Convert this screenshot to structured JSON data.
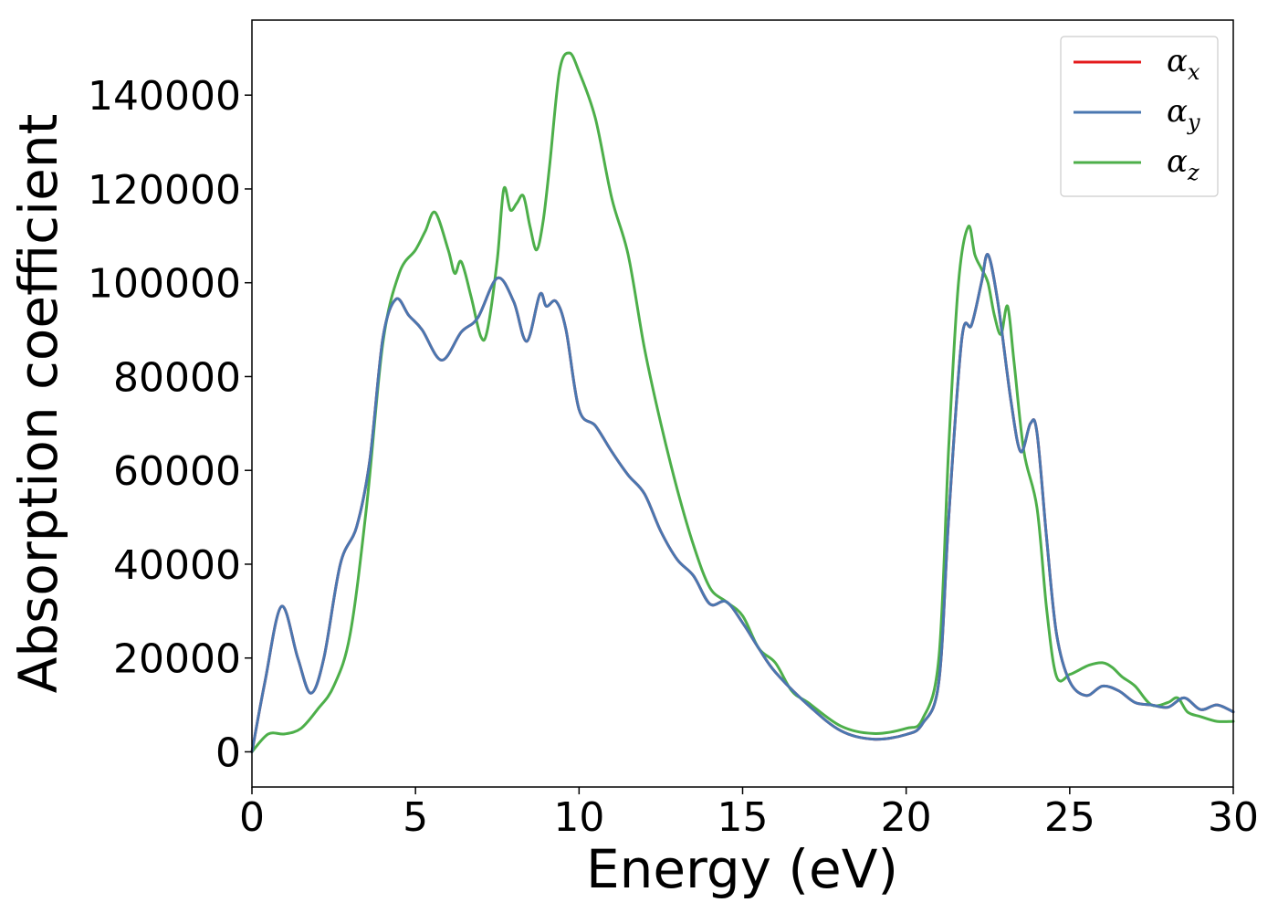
{
  "chart_data": {
    "type": "line",
    "title": "",
    "xlabel": "Energy (eV)",
    "ylabel": "Absorption coefficient",
    "xlim": [
      0,
      30
    ],
    "ylim": [
      -7500,
      156000
    ],
    "xticks": [
      0,
      5,
      10,
      15,
      20,
      25,
      30
    ],
    "yticks": [
      0,
      20000,
      40000,
      60000,
      80000,
      100000,
      120000,
      140000
    ],
    "grid": false,
    "legend_position": "top-right",
    "series": [
      {
        "name": "αx",
        "symbol": "α",
        "sub": "x",
        "color": "#e41a1c",
        "x": [
          0,
          0.4,
          0.9,
          1.4,
          1.8,
          2.2,
          2.7,
          3.2,
          3.6,
          4.0,
          4.4,
          4.8,
          5.2,
          5.8,
          6.4,
          6.9,
          7.5,
          8.0,
          8.4,
          8.8,
          9.0,
          9.3,
          9.6,
          10.0,
          10.5,
          11.0,
          11.5,
          12.0,
          12.5,
          13.0,
          13.5,
          14.0,
          14.5,
          15.0,
          15.5,
          16.0,
          17.0,
          18.0,
          19.0,
          20.0,
          20.5,
          21.0,
          21.3,
          21.7,
          22.0,
          22.3,
          22.5,
          22.8,
          23.2,
          23.5,
          23.8,
          24.0,
          24.3,
          24.6,
          25.0,
          25.5,
          26.0,
          26.5,
          27.0,
          27.5,
          28.0,
          28.5,
          29.0,
          29.5,
          30.0
        ],
        "y": [
          0,
          15000,
          31000,
          20000,
          12500,
          20000,
          40000,
          48000,
          62000,
          88000,
          96500,
          93000,
          90000,
          83500,
          89500,
          92500,
          101000,
          96000,
          87500,
          97500,
          95000,
          96000,
          90000,
          73000,
          69500,
          64000,
          59000,
          55000,
          47000,
          41000,
          37500,
          31500,
          32000,
          27500,
          22000,
          17000,
          10000,
          4500,
          2700,
          3700,
          6000,
          15000,
          50000,
          88000,
          91000,
          100000,
          106000,
          96000,
          75000,
          64000,
          70000,
          68000,
          45000,
          25000,
          15000,
          12000,
          14000,
          13000,
          10500,
          10000,
          9500,
          11500,
          9000,
          10000,
          8500
        ]
      },
      {
        "name": "αy",
        "symbol": "α",
        "sub": "y",
        "color": "#4a77b0",
        "x": [
          0,
          0.4,
          0.9,
          1.4,
          1.8,
          2.2,
          2.7,
          3.2,
          3.6,
          4.0,
          4.4,
          4.8,
          5.2,
          5.8,
          6.4,
          6.9,
          7.5,
          8.0,
          8.4,
          8.8,
          9.0,
          9.3,
          9.6,
          10.0,
          10.5,
          11.0,
          11.5,
          12.0,
          12.5,
          13.0,
          13.5,
          14.0,
          14.5,
          15.0,
          15.5,
          16.0,
          17.0,
          18.0,
          19.0,
          20.0,
          20.5,
          21.0,
          21.3,
          21.7,
          22.0,
          22.3,
          22.5,
          22.8,
          23.2,
          23.5,
          23.8,
          24.0,
          24.3,
          24.6,
          25.0,
          25.5,
          26.0,
          26.5,
          27.0,
          27.5,
          28.0,
          28.5,
          29.0,
          29.5,
          30.0
        ],
        "y": [
          0,
          15000,
          31000,
          20000,
          12500,
          20000,
          40000,
          48000,
          62000,
          88000,
          96500,
          93000,
          90000,
          83500,
          89500,
          92500,
          101000,
          96000,
          87500,
          97500,
          95000,
          96000,
          90000,
          73000,
          69500,
          64000,
          59000,
          55000,
          47000,
          41000,
          37500,
          31500,
          32000,
          27500,
          22000,
          17000,
          10000,
          4500,
          2700,
          3700,
          6000,
          15000,
          50000,
          88000,
          91000,
          100000,
          106000,
          96000,
          75000,
          64000,
          70000,
          68000,
          45000,
          25000,
          15000,
          12000,
          14000,
          13000,
          10500,
          10000,
          9500,
          11500,
          9000,
          10000,
          8500
        ]
      },
      {
        "name": "αz",
        "symbol": "α",
        "sub": "z",
        "color": "#4daf4a",
        "x": [
          0,
          0.5,
          1.0,
          1.5,
          2.0,
          2.5,
          3.0,
          3.5,
          4.0,
          4.5,
          5.0,
          5.3,
          5.6,
          6.0,
          6.2,
          6.4,
          6.7,
          7.0,
          7.2,
          7.5,
          7.7,
          7.9,
          8.1,
          8.3,
          8.5,
          8.7,
          8.9,
          9.1,
          9.4,
          9.7,
          10.0,
          10.5,
          11.0,
          11.5,
          12.0,
          12.5,
          13.0,
          13.5,
          14.0,
          14.5,
          15.0,
          15.5,
          16.0,
          16.5,
          17.0,
          18.0,
          19.0,
          20.0,
          20.5,
          21.0,
          21.3,
          21.6,
          21.9,
          22.1,
          22.3,
          22.5,
          22.7,
          22.9,
          23.1,
          23.3,
          23.6,
          24.0,
          24.3,
          24.6,
          25.0,
          25.3,
          25.6,
          26.0,
          26.3,
          26.6,
          27.0,
          27.5,
          28.0,
          28.3,
          28.6,
          29.0,
          29.5,
          30.0
        ],
        "y": [
          0,
          3800,
          3800,
          5000,
          9000,
          14000,
          25000,
          52000,
          87000,
          102000,
          107000,
          111000,
          115000,
          107000,
          102000,
          104500,
          97000,
          88500,
          90000,
          105000,
          120000,
          115500,
          117000,
          118500,
          112000,
          107000,
          113000,
          125000,
          145000,
          149000,
          145000,
          135000,
          118000,
          106000,
          86000,
          70000,
          56000,
          44000,
          35000,
          32000,
          29000,
          22000,
          19000,
          13000,
          10500,
          5500,
          3900,
          5000,
          7000,
          20000,
          65000,
          100000,
          112000,
          106000,
          103000,
          100000,
          93000,
          89000,
          95000,
          83000,
          64000,
          52000,
          30000,
          16000,
          16500,
          17500,
          18500,
          19000,
          18000,
          16000,
          14000,
          10000,
          10500,
          11500,
          8500,
          7500,
          6500,
          6500
        ]
      }
    ]
  }
}
